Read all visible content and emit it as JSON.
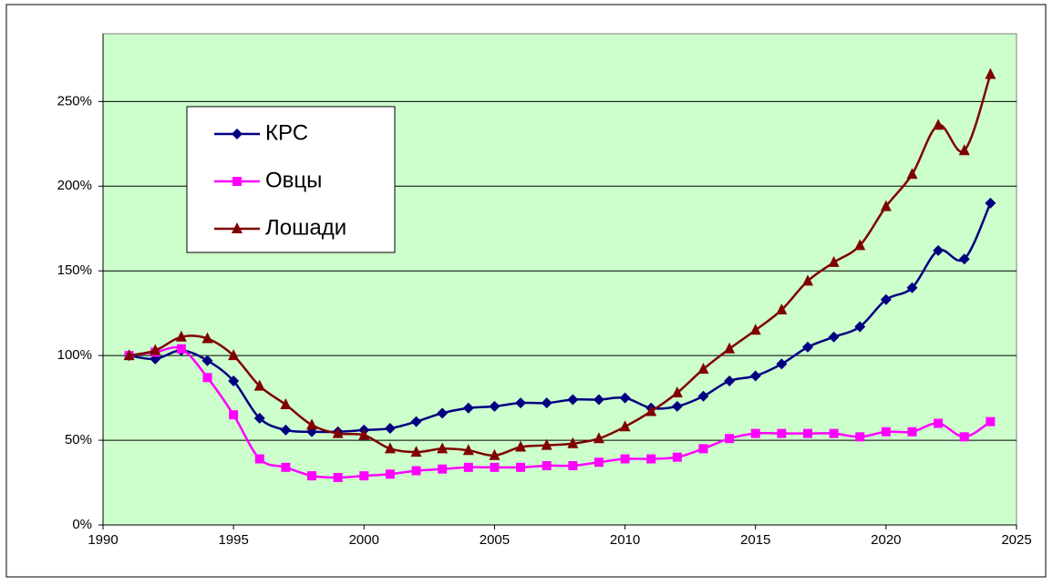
{
  "chart_data": {
    "type": "line",
    "x": [
      1991,
      1992,
      1993,
      1994,
      1995,
      1996,
      1997,
      1998,
      1999,
      2000,
      2001,
      2002,
      2003,
      2004,
      2005,
      2006,
      2007,
      2008,
      2009,
      2010,
      2011,
      2012,
      2013,
      2014,
      2015,
      2016,
      2017,
      2018,
      2019,
      2020,
      2021,
      2022,
      2023,
      2024
    ],
    "series": [
      {
        "name": "КРС",
        "color": "#000080",
        "marker": "diamond",
        "values": [
          100,
          98,
          103,
          97,
          85,
          63,
          56,
          55,
          55,
          56,
          57,
          61,
          66,
          69,
          70,
          72,
          72,
          74,
          74,
          75,
          69,
          70,
          76,
          85,
          88,
          95,
          105,
          111,
          117,
          133,
          140,
          162,
          157,
          190
        ]
      },
      {
        "name": "Овцы",
        "color": "#ff00ff",
        "marker": "square",
        "values": [
          100,
          102,
          104,
          87,
          65,
          39,
          34,
          29,
          28,
          29,
          30,
          32,
          33,
          34,
          34,
          34,
          35,
          35,
          37,
          39,
          39,
          40,
          45,
          51,
          54,
          54,
          54,
          54,
          52,
          55,
          55,
          60,
          52,
          61
        ]
      },
      {
        "name": "Лошади",
        "color": "#800000",
        "marker": "triangle",
        "values": [
          100,
          103,
          111,
          110,
          100,
          82,
          71,
          59,
          54,
          53,
          45,
          43,
          45,
          44,
          41,
          46,
          47,
          48,
          51,
          58,
          67,
          78,
          92,
          104,
          115,
          127,
          144,
          155,
          165,
          188,
          207,
          236,
          221,
          266
        ]
      }
    ],
    "xlim": [
      1990,
      2025
    ],
    "xticks": [
      1990,
      1995,
      2000,
      2005,
      2010,
      2015,
      2020,
      2025
    ],
    "ylim": [
      0,
      290
    ],
    "yticks": [
      {
        "value": 0,
        "label": "0%"
      },
      {
        "value": 50,
        "label": "50%"
      },
      {
        "value": 100,
        "label": "100%"
      },
      {
        "value": 150,
        "label": "150%"
      },
      {
        "value": 200,
        "label": "200%"
      },
      {
        "value": 250,
        "label": "250%"
      }
    ],
    "grid": true,
    "smooth": true,
    "legend": "top-left",
    "plot_background": "#ccffcc"
  }
}
